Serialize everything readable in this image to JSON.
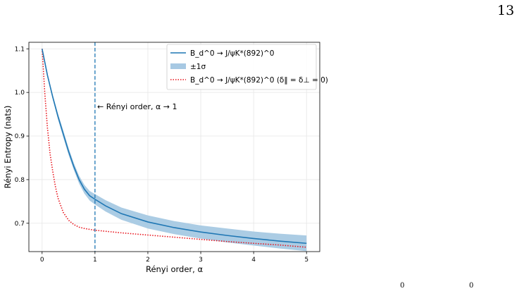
{
  "page": {
    "number": "13",
    "bottom_fragments": [
      "0",
      "0"
    ]
  },
  "chart_data": {
    "type": "line",
    "xlabel": "Rényi  order, α",
    "ylabel": "Rényi Entropy (nats)",
    "xlim": [
      -0.25,
      5.25
    ],
    "ylim": [
      0.635,
      1.115
    ],
    "xticks": [
      0,
      1,
      2,
      3,
      4,
      5
    ],
    "yticks": [
      0.7,
      0.8,
      0.9,
      1.0,
      1.1
    ],
    "xtick_labels": [
      "0",
      "1",
      "2",
      "3",
      "4",
      "5"
    ],
    "ytick_labels": [
      "0.7",
      "0.8",
      "0.9",
      "1.0",
      "1.1"
    ],
    "grid": true,
    "legend_placement": "top-right",
    "colors": {
      "main": "#1f77b4",
      "band": "#a7c9e3",
      "alt": "#e8141c"
    },
    "series": [
      {
        "name": "B_d^0 → J/ψK*(892)^0",
        "style": "solid",
        "x": [
          0,
          0.05,
          0.1,
          0.2,
          0.3,
          0.4,
          0.5,
          0.6,
          0.7,
          0.8,
          0.9,
          1.0,
          1.2,
          1.5,
          2.0,
          2.5,
          3.0,
          3.5,
          4.0,
          4.5,
          5.0
        ],
        "y": [
          1.1,
          1.07,
          1.04,
          0.99,
          0.945,
          0.905,
          0.865,
          0.83,
          0.8,
          0.778,
          0.763,
          0.755,
          0.74,
          0.722,
          0.703,
          0.69,
          0.68,
          0.672,
          0.665,
          0.659,
          0.654
        ],
        "band_lower": [
          1.099,
          1.067,
          1.036,
          0.985,
          0.938,
          0.897,
          0.857,
          0.822,
          0.791,
          0.768,
          0.752,
          0.743,
          0.727,
          0.708,
          0.688,
          0.675,
          0.665,
          0.656,
          0.649,
          0.642,
          0.636
        ],
        "band_upper": [
          1.101,
          1.073,
          1.044,
          0.995,
          0.952,
          0.913,
          0.873,
          0.838,
          0.809,
          0.788,
          0.774,
          0.767,
          0.753,
          0.736,
          0.718,
          0.705,
          0.695,
          0.688,
          0.681,
          0.676,
          0.672
        ]
      },
      {
        "name": "B_d^0 → J/ψK*(892)^0 (δ‖ = δ⊥ = 0)",
        "style": "dotted",
        "x": [
          0,
          0.05,
          0.1,
          0.15,
          0.2,
          0.25,
          0.3,
          0.4,
          0.5,
          0.6,
          0.7,
          0.8,
          1.0,
          1.5,
          2.0,
          2.5,
          3.0,
          3.5,
          4.0,
          4.5,
          5.0
        ],
        "y": [
          1.1,
          1.0,
          0.92,
          0.86,
          0.82,
          0.785,
          0.758,
          0.725,
          0.707,
          0.697,
          0.691,
          0.688,
          0.684,
          0.678,
          0.673,
          0.668,
          0.663,
          0.658,
          0.654,
          0.65,
          0.645
        ]
      }
    ],
    "band_label": "±1σ",
    "vline": {
      "x": 1.0,
      "style": "dashed"
    },
    "annotation": "← Rényi order, α → 1"
  }
}
